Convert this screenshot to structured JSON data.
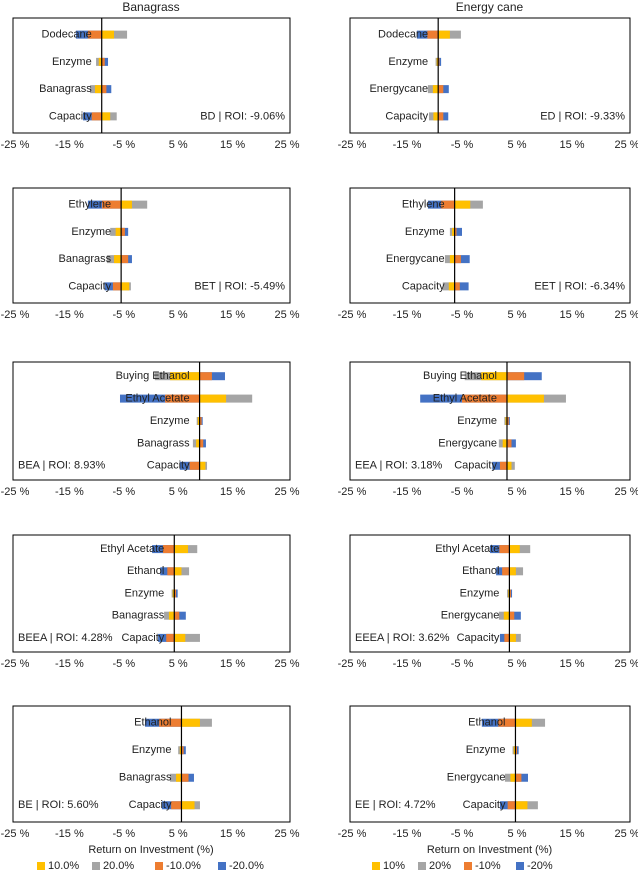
{
  "chart_data": [
    {
      "type": "bar",
      "title": "Banagrass",
      "annotation": "BD | ROI: -9.06%",
      "base": -9.06,
      "annotation_corner": "lower right",
      "categories": [
        "Dodecane",
        "Enzyme",
        "Banagrass",
        "Capacity"
      ],
      "series": [
        {
          "color": "#ffc000",
          "values": [
            -6.8,
            -9.6,
            -10.3,
            -7.5
          ]
        },
        {
          "color": "#a5a5a5",
          "values": [
            -4.4,
            -10.1,
            -11.2,
            -6.3
          ]
        },
        {
          "color": "#ed7d31",
          "values": [
            -11.6,
            -8.5,
            -8.2,
            -10.9
          ]
        },
        {
          "color": "#4472c4",
          "values": [
            -13.8,
            -7.9,
            -7.3,
            -12.5
          ]
        }
      ],
      "xlim": [
        -25,
        25
      ],
      "xticks": [
        {
          "value": -25,
          "label": "-25 %"
        },
        {
          "value": -15,
          "label": "-15 %"
        },
        {
          "value": -5,
          "label": "-5 %"
        },
        {
          "value": 5,
          "label": "5 %"
        },
        {
          "value": 15,
          "label": "15 %"
        },
        {
          "value": 25,
          "label": "25 %"
        }
      ]
    },
    {
      "type": "bar",
      "title": "Energy cane",
      "annotation": "ED | ROI: -9.33%",
      "base": -9.33,
      "annotation_corner": "lower right",
      "categories": [
        "Dodecane",
        "Enzyme",
        "Energycane",
        "Capacity"
      ],
      "series": [
        {
          "color": "#ffc000",
          "values": [
            -7.2,
            -9.6,
            -10.3,
            -10.2
          ]
        },
        {
          "color": "#a5a5a5",
          "values": [
            -5.2,
            -9.8,
            -11.2,
            -11.0
          ]
        },
        {
          "color": "#ed7d31",
          "values": [
            -11.3,
            -9.1,
            -8.4,
            -8.4
          ]
        },
        {
          "color": "#4472c4",
          "values": [
            -13.2,
            -8.8,
            -7.4,
            -7.5
          ]
        }
      ],
      "xlim": [
        -25,
        25
      ],
      "xticks": [
        {
          "value": -25,
          "label": "-25 %"
        },
        {
          "value": -15,
          "label": "-15 %"
        },
        {
          "value": -5,
          "label": "-5 %"
        },
        {
          "value": 5,
          "label": "5 %"
        },
        {
          "value": 15,
          "label": "15 %"
        },
        {
          "value": 25,
          "label": "25 %"
        }
      ]
    },
    {
      "type": "bar",
      "annotation": "BET | ROI: -5.49%",
      "base": -5.49,
      "annotation_corner": "lower right",
      "categories": [
        "Ethylene",
        "Enzyme",
        "Banagrass",
        "Capacity"
      ],
      "series": [
        {
          "color": "#ffc000",
          "values": [
            -3.5,
            -6.5,
            -6.8,
            -4.0
          ]
        },
        {
          "color": "#a5a5a5",
          "values": [
            -0.7,
            -7.5,
            -8.1,
            -3.7
          ]
        },
        {
          "color": "#ed7d31",
          "values": [
            -9.0,
            -4.8,
            -4.2,
            -7.0
          ]
        },
        {
          "color": "#4472c4",
          "values": [
            -11.6,
            -4.2,
            -3.5,
            -8.5
          ]
        }
      ],
      "xlim": [
        -25,
        25
      ],
      "xticks": [
        {
          "value": -25,
          "label": "-25 %"
        },
        {
          "value": -15,
          "label": "-15 %"
        },
        {
          "value": -5,
          "label": "-5 %"
        },
        {
          "value": 5,
          "label": "5 %"
        },
        {
          "value": 15,
          "label": "15 %"
        },
        {
          "value": 25,
          "label": "25 %"
        }
      ]
    },
    {
      "type": "bar",
      "annotation": "EET | ROI: -6.34%",
      "base": -6.34,
      "annotation_corner": "lower right",
      "categories": [
        "Ethylene",
        "Enzyme",
        "Energycane",
        "Capacity"
      ],
      "series": [
        {
          "color": "#ffc000",
          "values": [
            -3.5,
            -6.8,
            -7.2,
            -7.4
          ]
        },
        {
          "color": "#a5a5a5",
          "values": [
            -1.2,
            -7.2,
            -8.1,
            -8.5
          ]
        },
        {
          "color": "#ed7d31",
          "values": [
            -8.8,
            -6.0,
            -5.2,
            -5.4
          ]
        },
        {
          "color": "#4472c4",
          "values": [
            -11.2,
            -5.0,
            -3.6,
            -3.8
          ]
        }
      ],
      "xlim": [
        -25,
        25
      ],
      "xticks": [
        {
          "value": -25,
          "label": "-25 %"
        },
        {
          "value": -15,
          "label": "-15 %"
        },
        {
          "value": -5,
          "label": "-5 %"
        },
        {
          "value": 5,
          "label": "5 %"
        },
        {
          "value": 15,
          "label": "15 %"
        },
        {
          "value": 25,
          "label": "25 %"
        }
      ]
    },
    {
      "type": "bar",
      "annotation": "BEA | ROI: 8.93%",
      "base": 8.93,
      "annotation_corner": "lower left",
      "categories": [
        "Buying Ethanol",
        "Ethyl Acetate",
        "Enzyme",
        "Banagrass",
        "Capacity"
      ],
      "series": [
        {
          "color": "#ffc000",
          "values": [
            3.5,
            13.8,
            8.6,
            8.3,
            10.0
          ]
        },
        {
          "color": "#a5a5a5",
          "values": [
            0.7,
            18.6,
            8.4,
            7.7,
            10.3
          ]
        },
        {
          "color": "#ed7d31",
          "values": [
            11.2,
            2.6,
            9.3,
            9.6,
            7.1
          ]
        },
        {
          "color": "#4472c4",
          "values": [
            13.6,
            -5.7,
            9.5,
            10.1,
            5.3
          ]
        }
      ],
      "xlim": [
        -25,
        25
      ],
      "xticks": [
        {
          "value": -25,
          "label": "-25 %"
        },
        {
          "value": -15,
          "label": "-15 %"
        },
        {
          "value": -5,
          "label": "-5 %"
        },
        {
          "value": 5,
          "label": "5 %"
        },
        {
          "value": 15,
          "label": "15 %"
        },
        {
          "value": 25,
          "label": "25 %"
        }
      ]
    },
    {
      "type": "bar",
      "annotation": "EEA | ROI: 3.18%",
      "base": 3.18,
      "annotation_corner": "lower left",
      "categories": [
        "Buying Ethanol",
        "Ethyl Acetate",
        "Enzyme",
        "Energycane",
        "Capacity"
      ],
      "series": [
        {
          "color": "#ffc000",
          "values": [
            -1.5,
            9.9,
            2.9,
            2.4,
            4.0
          ]
        },
        {
          "color": "#a5a5a5",
          "values": [
            -4.5,
            13.9,
            2.7,
            1.7,
            4.6
          ]
        },
        {
          "color": "#ed7d31",
          "values": [
            6.3,
            -5.0,
            3.5,
            4.0,
            1.9
          ]
        },
        {
          "color": "#4472c4",
          "values": [
            9.5,
            -12.6,
            3.7,
            4.8,
            0.5
          ]
        }
      ],
      "xlim": [
        -25,
        25
      ],
      "xticks": [
        {
          "value": -25,
          "label": "-25 %"
        },
        {
          "value": -15,
          "label": "-15 %"
        },
        {
          "value": -5,
          "label": "-5 %"
        },
        {
          "value": 5,
          "label": "5 %"
        },
        {
          "value": 15,
          "label": "15 %"
        },
        {
          "value": 25,
          "label": "25 %"
        }
      ]
    },
    {
      "type": "bar",
      "annotation": "BEEA | ROI: 4.28%",
      "base": 4.28,
      "annotation_corner": "lower left",
      "categories": [
        "Ethyl Acetate",
        "Ethanol",
        "Enzyme",
        "Banagrass",
        "Capacity"
      ],
      "series": [
        {
          "color": "#ffc000",
          "values": [
            6.8,
            5.6,
            4.0,
            3.3,
            6.3
          ]
        },
        {
          "color": "#a5a5a5",
          "values": [
            8.5,
            7.0,
            3.8,
            2.4,
            9.0
          ]
        },
        {
          "color": "#ed7d31",
          "values": [
            2.2,
            3.0,
            4.6,
            5.2,
            2.8
          ]
        },
        {
          "color": "#4472c4",
          "values": [
            0.2,
            1.7,
            4.9,
            6.4,
            1.3
          ]
        }
      ],
      "xlim": [
        -25,
        25
      ],
      "xticks": [
        {
          "value": -25,
          "label": "-25 %"
        },
        {
          "value": -15,
          "label": "-15 %"
        },
        {
          "value": -5,
          "label": "-5 %"
        },
        {
          "value": 5,
          "label": "5 %"
        },
        {
          "value": 15,
          "label": "15 %"
        },
        {
          "value": 25,
          "label": "25 %"
        }
      ]
    },
    {
      "type": "bar",
      "annotation": "EEEA | ROI: 3.62%",
      "base": 3.62,
      "annotation_corner": "lower left",
      "categories": [
        "Ethyl Acetate",
        "Ethanol",
        "Enzyme",
        "Energycane",
        "Capacity"
      ],
      "series": [
        {
          "color": "#ffc000",
          "values": [
            5.5,
            4.8,
            3.4,
            2.6,
            4.8
          ]
        },
        {
          "color": "#a5a5a5",
          "values": [
            7.4,
            6.1,
            3.2,
            1.7,
            5.7
          ]
        },
        {
          "color": "#ed7d31",
          "values": [
            1.8,
            2.3,
            3.9,
            4.5,
            2.7
          ]
        },
        {
          "color": "#4472c4",
          "values": [
            0.1,
            1.2,
            4.1,
            5.7,
            1.9
          ]
        }
      ],
      "xlim": [
        -25,
        25
      ],
      "xticks": [
        {
          "value": -25,
          "label": "-25 %"
        },
        {
          "value": -15,
          "label": "-15 %"
        },
        {
          "value": -5,
          "label": "-5 %"
        },
        {
          "value": 5,
          "label": "5 %"
        },
        {
          "value": 15,
          "label": "15 %"
        },
        {
          "value": 25,
          "label": "25 %"
        }
      ]
    },
    {
      "type": "bar",
      "annotation": "BE | ROI: 5.60%",
      "base": 5.6,
      "annotation_corner": "lower left",
      "xlabel": "Return on Investment (%)",
      "categories": [
        "Ethanol",
        "Enzyme",
        "Banagrass",
        "Capacity"
      ],
      "series": [
        {
          "name": "10.0%",
          "color": "#ffc000",
          "values": [
            9.0,
            5.3,
            4.6,
            8.0
          ]
        },
        {
          "name": "20.0%",
          "color": "#a5a5a5",
          "values": [
            11.2,
            5.0,
            3.5,
            9.0
          ]
        },
        {
          "name": "-10.0%",
          "color": "#ed7d31",
          "values": [
            1.5,
            6.0,
            6.9,
            3.7
          ]
        },
        {
          "name": "-20.0%",
          "color": "#4472c4",
          "values": [
            -1.1,
            6.4,
            7.9,
            2.0
          ]
        }
      ],
      "xlim": [
        -25,
        25
      ],
      "xticks": [
        {
          "value": -25,
          "label": "-25 %"
        },
        {
          "value": -15,
          "label": "-15 %"
        },
        {
          "value": -5,
          "label": "-5 %"
        },
        {
          "value": 5,
          "label": "5 %"
        },
        {
          "value": 15,
          "label": "15 %"
        },
        {
          "value": 25,
          "label": "25 %"
        }
      ]
    },
    {
      "type": "bar",
      "annotation": "EE | ROI: 4.72%",
      "base": 4.72,
      "annotation_corner": "lower left",
      "xlabel": "Return on Investment (%)",
      "categories": [
        "Ethanol",
        "Enzyme",
        "Energycane",
        "Capacity"
      ],
      "series": [
        {
          "name": "10%",
          "color": "#ffc000",
          "values": [
            7.7,
            4.4,
            3.8,
            6.9
          ]
        },
        {
          "name": "20%",
          "color": "#a5a5a5",
          "values": [
            10.1,
            4.2,
            2.8,
            8.8
          ]
        },
        {
          "name": "-10%",
          "color": "#ed7d31",
          "values": [
            1.6,
            5.0,
            5.8,
            3.3
          ]
        },
        {
          "name": "-20%",
          "color": "#4472c4",
          "values": [
            -1.4,
            5.3,
            7.0,
            1.9
          ]
        }
      ],
      "xlim": [
        -25,
        25
      ],
      "xticks": [
        {
          "value": -25,
          "label": "-25 %"
        },
        {
          "value": -15,
          "label": "-15 %"
        },
        {
          "value": -5,
          "label": "-5 %"
        },
        {
          "value": 5,
          "label": "5 %"
        },
        {
          "value": 15,
          "label": "15 %"
        },
        {
          "value": 25,
          "label": "25 %"
        }
      ]
    }
  ]
}
